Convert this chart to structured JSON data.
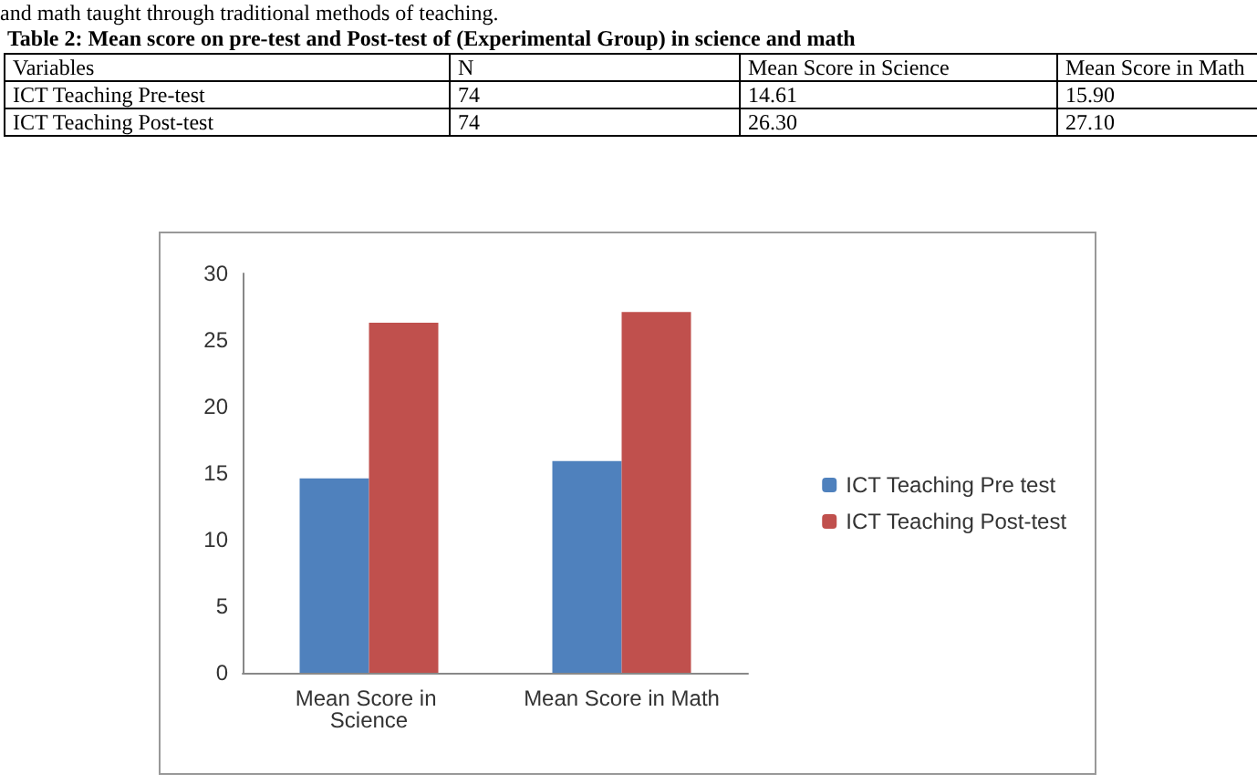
{
  "chart_data": {
    "type": "bar",
    "title": "Table 2: Mean score on pre-test and Post-test of (Experimental Group) in science and math",
    "annotations": [
      "and math taught through traditional methods of teaching.",
      "Variables",
      "N",
      "ICT Teaching Pre-test",
      "74",
      "14.61",
      "15.90",
      "ICT Teaching Post-test",
      "74",
      "26.30",
      "27.10"
    ],
    "categories": [
      "Mean Score in Science",
      "Mean Score in Math"
    ],
    "series": [
      {
        "name": "ICT Teaching Pre test",
        "color": "#4f81bd",
        "values": [
          14.6,
          15.9
        ]
      },
      {
        "name": "ICT Teaching Post-test",
        "color": "#c0504d",
        "values": [
          26.3,
          27.1
        ]
      }
    ],
    "ylim": [
      0,
      30
    ],
    "yticks": [
      0,
      5,
      10,
      15,
      20,
      25,
      30
    ],
    "grid": false,
    "legend": "right"
  }
}
